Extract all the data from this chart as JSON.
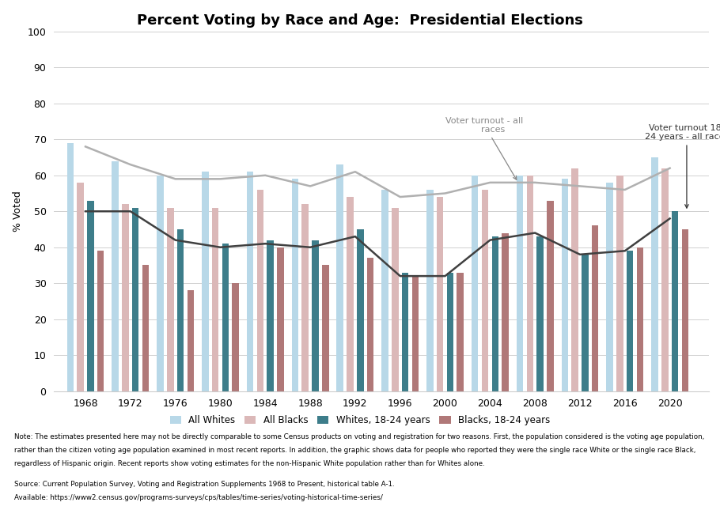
{
  "title": "Percent Voting by Race and Age:  Presidential Elections",
  "ylabel": "% Voted",
  "years": [
    1968,
    1972,
    1976,
    1980,
    1984,
    1988,
    1992,
    1996,
    2000,
    2004,
    2008,
    2012,
    2016,
    2020
  ],
  "all_whites": [
    69,
    64,
    60,
    61,
    61,
    59,
    63,
    56,
    56,
    60,
    60,
    59,
    58,
    65
  ],
  "all_blacks": [
    58,
    52,
    51,
    51,
    56,
    52,
    54,
    51,
    54,
    56,
    60,
    62,
    60,
    62
  ],
  "whites_18_24": [
    53,
    51,
    45,
    41,
    42,
    42,
    45,
    33,
    33,
    43,
    43,
    38,
    39,
    50
  ],
  "blacks_18_24": [
    39,
    35,
    28,
    30,
    40,
    35,
    37,
    32,
    33,
    44,
    53,
    46,
    40,
    45
  ],
  "voter_turnout_all": [
    68,
    63,
    59,
    59,
    60,
    57,
    61,
    54,
    55,
    58,
    58,
    57,
    56,
    62
  ],
  "voter_turnout_18_24": [
    50,
    50,
    42,
    40,
    41,
    40,
    43,
    32,
    32,
    42,
    44,
    38,
    39,
    48
  ],
  "color_all_whites": "#b8d8e8",
  "color_all_blacks": "#dbb8b8",
  "color_whites_18_24": "#3d7d8a",
  "color_blacks_18_24": "#b07878",
  "color_voter_turnout_all": "#b0b0b0",
  "color_voter_turnout_18_24": "#404040",
  "ylim": [
    0,
    100
  ],
  "yticks": [
    0,
    10,
    20,
    30,
    40,
    50,
    60,
    70,
    80,
    90,
    100
  ],
  "note_line1": "Note: The estimates presented here may not be directly comparable to some Census products on voting and registration for two reasons. First, the population considered is the voting age population,",
  "note_line2": "rather than the citizen voting age population examined in most recent reports. In addition, the graphic shows data for people who reported they were the single race White or the single race Black,",
  "note_line3": "regardless of Hispanic origin. Recent reports show voting estimates for the non-Hispanic White population rather than for Whites alone.",
  "source_line1": "Source: Current Population Survey, Voting and Registration Supplements 1968 to Present, historical table A-1.",
  "source_line2": "Available: https://www2.census.gov/programs-surveys/cps/tables/time-series/voting-historical-time-series/"
}
